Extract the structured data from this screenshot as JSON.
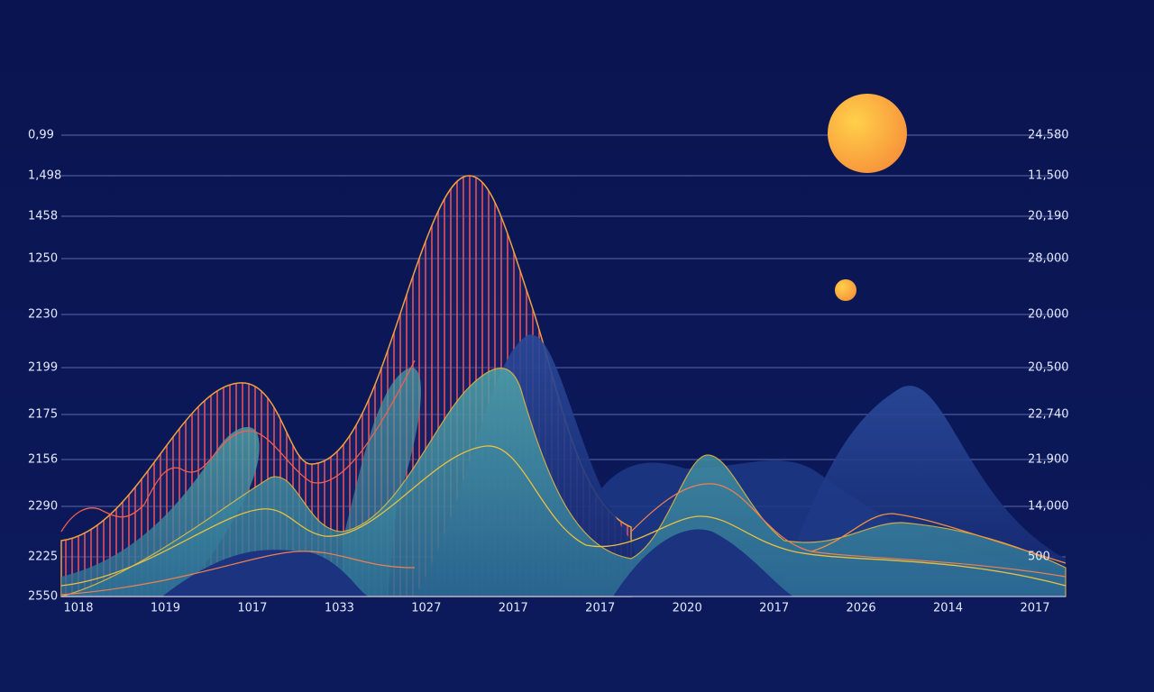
{
  "left_labels": [
    "0,99",
    "1,498",
    "1458",
    "1250",
    "2230",
    "2199",
    "2175",
    "2156",
    "2290",
    "2225",
    "2550"
  ],
  "right_labels": [
    "24,580",
    "11,500",
    "20,190",
    "28,000",
    "20,000",
    "20,500",
    "22,740",
    "21,900",
    "14,000",
    "500"
  ],
  "bottom_labels": [
    "1018",
    "1019",
    "1017",
    "1033",
    "1027",
    "2017",
    "2017",
    "2020",
    "2017",
    "2026",
    "2014",
    "2017"
  ]
}
